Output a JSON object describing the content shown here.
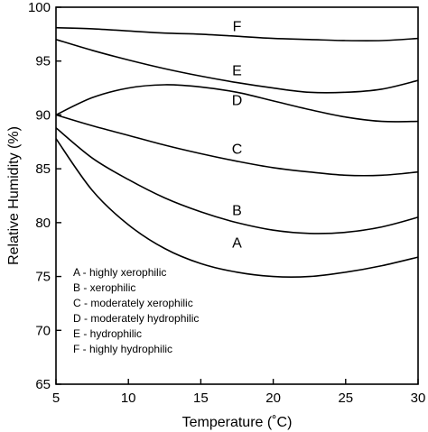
{
  "chart_data": {
    "type": "line",
    "title": "",
    "xlabel": "Temperature (˚C)",
    "ylabel": "Relative Humidity (%)",
    "xlim": [
      5,
      30
    ],
    "ylim": [
      65,
      100
    ],
    "xticks": [
      5,
      10,
      15,
      20,
      25,
      30
    ],
    "yticks": [
      65,
      70,
      75,
      80,
      85,
      90,
      95,
      100
    ],
    "grid": false,
    "legend_position": "bottom-left",
    "x": [
      5,
      7.5,
      10,
      12.5,
      15,
      17.5,
      20,
      22.5,
      25,
      27.5,
      30
    ],
    "series": [
      {
        "name": "A",
        "label_at": [
          17.5,
          78.2
        ],
        "values": [
          87.8,
          83.0,
          79.8,
          77.6,
          76.2,
          75.4,
          75.0,
          75.0,
          75.4,
          76.0,
          76.8
        ]
      },
      {
        "name": "B",
        "label_at": [
          17.5,
          81.2
        ],
        "values": [
          88.8,
          86.0,
          84.0,
          82.3,
          81.0,
          80.0,
          79.3,
          79.0,
          79.1,
          79.6,
          80.5
        ]
      },
      {
        "name": "C",
        "label_at": [
          17.5,
          86.9
        ],
        "values": [
          90.0,
          89.0,
          88.1,
          87.2,
          86.4,
          85.7,
          85.1,
          84.7,
          84.4,
          84.4,
          84.7
        ]
      },
      {
        "name": "D",
        "label_at": [
          17.5,
          91.4
        ],
        "values": [
          90.0,
          91.6,
          92.5,
          92.8,
          92.6,
          92.1,
          91.3,
          90.5,
          89.8,
          89.4,
          89.4
        ]
      },
      {
        "name": "E",
        "label_at": [
          17.5,
          94.2
        ],
        "values": [
          97.0,
          96.0,
          95.1,
          94.3,
          93.6,
          93.0,
          92.5,
          92.1,
          92.1,
          92.4,
          93.2
        ]
      },
      {
        "name": "F",
        "label_at": [
          17.5,
          98.3
        ],
        "values": [
          98.1,
          98.0,
          97.8,
          97.6,
          97.5,
          97.3,
          97.1,
          97.0,
          96.9,
          96.9,
          97.1
        ]
      }
    ],
    "legend": [
      "A - highly xerophilic",
      "B - xerophilic",
      "C - moderately xerophilic",
      "D - moderately hydrophilic",
      "E - hydrophilic",
      "F - highly hydrophilic"
    ]
  }
}
